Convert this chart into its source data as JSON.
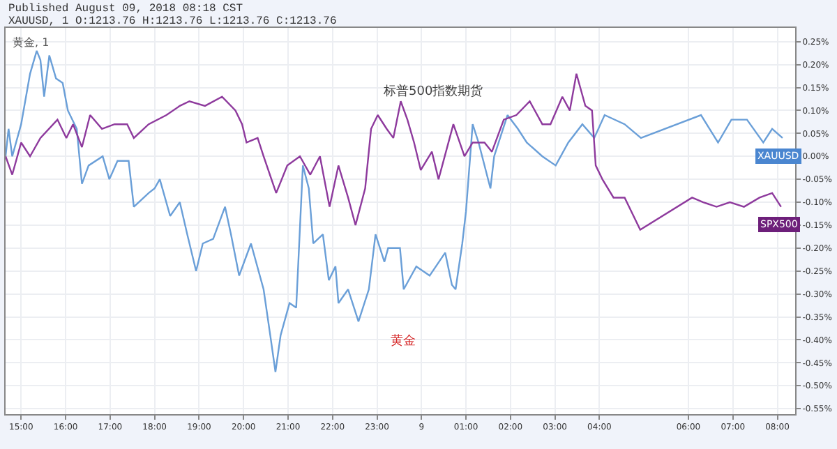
{
  "chart_data": {
    "type": "line",
    "title": "Published August 09, 2018 08:18 CST",
    "subtitle": "XAUUSD, 1 O:1213.76 H:1213.76 L:1213.76 C:1213.76",
    "annotations": [
      "黄金, 1",
      "标普500指数期货",
      "黄金"
    ],
    "grid": true,
    "legend": false,
    "marker": "none",
    "line_style": "solid",
    "xlim": [
      "2018-08-08T14:39",
      "2018-08-09T08:24"
    ],
    "ylim": [
      -0.562,
      0.28
    ],
    "xticks": [
      {
        "value": "2018-08-08T15:00",
        "label": "15:00"
      },
      {
        "value": "2018-08-08T16:00",
        "label": "16:00"
      },
      {
        "value": "2018-08-08T17:00",
        "label": "17:00"
      },
      {
        "value": "2018-08-08T18:00",
        "label": "18:00"
      },
      {
        "value": "2018-08-08T19:00",
        "label": "19:00"
      },
      {
        "value": "2018-08-08T20:00",
        "label": "20:00"
      },
      {
        "value": "2018-08-08T21:00",
        "label": "21:00"
      },
      {
        "value": "2018-08-08T22:00",
        "label": "22:00"
      },
      {
        "value": "2018-08-08T23:00",
        "label": "23:00"
      },
      {
        "value": "2018-08-09T00:00",
        "label": "9"
      },
      {
        "value": "2018-08-09T01:00",
        "label": "01:00"
      },
      {
        "value": "2018-08-09T02:00",
        "label": "02:00"
      },
      {
        "value": "2018-08-09T03:00",
        "label": "03:00"
      },
      {
        "value": "2018-08-09T04:00",
        "label": "04:00"
      },
      {
        "value": "2018-08-09T06:00",
        "label": "06:00"
      },
      {
        "value": "2018-08-09T07:00",
        "label": "07:00"
      },
      {
        "value": "2018-08-09T08:00",
        "label": "08:00"
      }
    ],
    "yticks": [
      {
        "value": 0.25,
        "label": "0.25%"
      },
      {
        "value": 0.2,
        "label": "0.20%"
      },
      {
        "value": 0.15,
        "label": "0.15%"
      },
      {
        "value": 0.1,
        "label": "0.10%"
      },
      {
        "value": 0.05,
        "label": "0.05%"
      },
      {
        "value": 0,
        "label": "0.00%"
      },
      {
        "value": -0.05,
        "label": "-0.05%"
      },
      {
        "value": -0.1,
        "label": "-0.10%"
      },
      {
        "value": -0.15,
        "label": "-0.15%"
      },
      {
        "value": -0.2,
        "label": "-0.20%"
      },
      {
        "value": -0.25,
        "label": "-0.25%"
      },
      {
        "value": -0.3,
        "label": "-0.30%"
      },
      {
        "value": -0.35,
        "label": "-0.35%"
      },
      {
        "value": -0.4,
        "label": "-0.40%"
      },
      {
        "value": -0.45,
        "label": "-0.45%"
      },
      {
        "value": -0.5,
        "label": "-0.50%"
      },
      {
        "value": -0.55,
        "label": "-0.55%"
      }
    ],
    "series": [
      {
        "name": "XAUUSD",
        "color": "#6a9fd8",
        "x": [
          "2018-08-08T14:39",
          "2018-08-08T14:43",
          "2018-08-08T14:48",
          "2018-08-08T15:00",
          "2018-08-08T15:12",
          "2018-08-08T15:21",
          "2018-08-08T15:26",
          "2018-08-08T15:31",
          "2018-08-08T15:38",
          "2018-08-08T15:47",
          "2018-08-08T15:56",
          "2018-08-08T16:03",
          "2018-08-08T16:15",
          "2018-08-08T16:22",
          "2018-08-08T16:31",
          "2018-08-08T16:50",
          "2018-08-08T16:59",
          "2018-08-08T17:10",
          "2018-08-08T17:25",
          "2018-08-08T17:32",
          "2018-08-08T17:52",
          "2018-08-08T18:00",
          "2018-08-08T18:07",
          "2018-08-08T18:21",
          "2018-08-08T18:34",
          "2018-08-08T18:44",
          "2018-08-08T18:56",
          "2018-08-08T19:05",
          "2018-08-08T19:19",
          "2018-08-08T19:35",
          "2018-08-08T19:43",
          "2018-08-08T19:54",
          "2018-08-08T20:10",
          "2018-08-08T20:27",
          "2018-08-08T20:36",
          "2018-08-08T20:43",
          "2018-08-08T20:50",
          "2018-08-08T21:02",
          "2018-08-08T21:11",
          "2018-08-08T21:20",
          "2018-08-08T21:28",
          "2018-08-08T21:34",
          "2018-08-08T21:47",
          "2018-08-08T21:55",
          "2018-08-08T22:04",
          "2018-08-08T22:08",
          "2018-08-08T22:21",
          "2018-08-08T22:35",
          "2018-08-08T22:49",
          "2018-08-08T22:58",
          "2018-08-08T23:10",
          "2018-08-08T23:15",
          "2018-08-08T23:31",
          "2018-08-08T23:36",
          "2018-08-08T23:53",
          "2018-08-09T00:11",
          "2018-08-09T00:32",
          "2018-08-09T00:41",
          "2018-08-09T00:46",
          "2018-08-09T00:55",
          "2018-08-09T01:00",
          "2018-08-09T01:09",
          "2018-08-09T01:17",
          "2018-08-09T01:33",
          "2018-08-09T01:38",
          "2018-08-09T01:56",
          "2018-08-09T02:10",
          "2018-08-09T02:22",
          "2018-08-09T02:43",
          "2018-08-09T03:01",
          "2018-08-09T03:18",
          "2018-08-09T03:37",
          "2018-08-09T03:53",
          "2018-08-09T04:07",
          "2018-08-09T04:34",
          "2018-08-09T04:56",
          "2018-08-09T06:17",
          "2018-08-09T06:40",
          "2018-08-09T06:58",
          "2018-08-09T07:19",
          "2018-08-09T07:41",
          "2018-08-09T07:53",
          "2018-08-09T08:07"
        ],
        "values": [
          0.0,
          0.06,
          0.0,
          0.07,
          0.18,
          0.23,
          0.21,
          0.13,
          0.22,
          0.17,
          0.16,
          0.1,
          0.06,
          -0.06,
          -0.02,
          0.0,
          -0.05,
          -0.01,
          -0.01,
          -0.11,
          -0.08,
          -0.07,
          -0.05,
          -0.13,
          -0.1,
          -0.17,
          -0.25,
          -0.19,
          -0.18,
          -0.11,
          -0.17,
          -0.26,
          -0.19,
          -0.29,
          -0.39,
          -0.47,
          -0.39,
          -0.32,
          -0.33,
          -0.02,
          -0.07,
          -0.19,
          -0.17,
          -0.27,
          -0.24,
          -0.32,
          -0.29,
          -0.36,
          -0.29,
          -0.17,
          -0.23,
          -0.2,
          -0.2,
          -0.29,
          -0.24,
          -0.26,
          -0.21,
          -0.28,
          -0.29,
          -0.19,
          -0.12,
          0.07,
          0.03,
          -0.07,
          0.0,
          0.09,
          0.06,
          0.03,
          0.0,
          -0.02,
          0.03,
          0.07,
          0.04,
          0.09,
          0.07,
          0.04,
          0.09,
          0.03,
          0.08,
          0.08,
          0.03,
          0.06,
          0.04
        ]
      },
      {
        "name": "SPX500",
        "color": "#8e3a9d",
        "x": [
          "2018-08-08T14:39",
          "2018-08-08T14:48",
          "2018-08-08T15:00",
          "2018-08-08T15:12",
          "2018-08-08T15:26",
          "2018-08-08T15:49",
          "2018-08-08T16:01",
          "2018-08-08T16:10",
          "2018-08-08T16:22",
          "2018-08-08T16:33",
          "2018-08-08T16:49",
          "2018-08-08T17:06",
          "2018-08-08T17:23",
          "2018-08-08T17:32",
          "2018-08-08T17:52",
          "2018-08-08T18:16",
          "2018-08-08T18:34",
          "2018-08-08T18:47",
          "2018-08-08T19:08",
          "2018-08-08T19:31",
          "2018-08-08T19:49",
          "2018-08-08T19:58",
          "2018-08-08T20:04",
          "2018-08-08T20:19",
          "2018-08-08T20:27",
          "2018-08-08T20:44",
          "2018-08-08T20:59",
          "2018-08-08T21:16",
          "2018-08-08T21:30",
          "2018-08-08T21:43",
          "2018-08-08T21:56",
          "2018-08-08T22:08",
          "2018-08-08T22:21",
          "2018-08-08T22:31",
          "2018-08-08T22:44",
          "2018-08-08T22:52",
          "2018-08-08T23:01",
          "2018-08-08T23:13",
          "2018-08-08T23:22",
          "2018-08-08T23:32",
          "2018-08-08T23:41",
          "2018-08-08T23:50",
          "2018-08-08T23:59",
          "2018-08-09T00:14",
          "2018-08-09T00:23",
          "2018-08-09T00:43",
          "2018-08-09T00:58",
          "2018-08-09T01:09",
          "2018-08-09T01:25",
          "2018-08-09T01:35",
          "2018-08-09T01:51",
          "2018-08-09T02:08",
          "2018-08-09T02:26",
          "2018-08-09T02:43",
          "2018-08-09T02:54",
          "2018-08-09T03:10",
          "2018-08-09T03:20",
          "2018-08-09T03:29",
          "2018-08-09T03:41",
          "2018-08-09T03:50",
          "2018-08-09T03:55",
          "2018-08-09T04:04",
          "2018-08-09T04:19",
          "2018-08-09T04:34",
          "2018-08-09T04:46",
          "2018-08-09T04:55",
          "2018-08-09T06:05",
          "2018-08-09T06:20",
          "2018-08-09T06:38",
          "2018-08-09T06:56",
          "2018-08-09T07:15",
          "2018-08-09T07:36",
          "2018-08-09T07:53",
          "2018-08-09T08:05"
        ],
        "values": [
          0.0,
          -0.04,
          0.03,
          0.0,
          0.04,
          0.08,
          0.04,
          0.07,
          0.02,
          0.09,
          0.06,
          0.07,
          0.07,
          0.04,
          0.07,
          0.09,
          0.11,
          0.12,
          0.11,
          0.13,
          0.1,
          0.07,
          0.03,
          0.04,
          0.0,
          -0.08,
          -0.02,
          0.0,
          -0.04,
          0.0,
          -0.11,
          -0.02,
          -0.09,
          -0.15,
          -0.07,
          0.06,
          0.09,
          0.06,
          0.04,
          0.12,
          0.08,
          0.03,
          -0.03,
          0.01,
          -0.05,
          0.07,
          0.0,
          0.03,
          0.03,
          0.01,
          0.08,
          0.09,
          0.12,
          0.07,
          0.07,
          0.13,
          0.1,
          0.18,
          0.11,
          0.1,
          -0.02,
          -0.05,
          -0.09,
          -0.09,
          -0.13,
          -0.16,
          -0.09,
          -0.1,
          -0.11,
          -0.1,
          -0.11,
          -0.09,
          -0.08,
          -0.11
        ]
      }
    ]
  }
}
